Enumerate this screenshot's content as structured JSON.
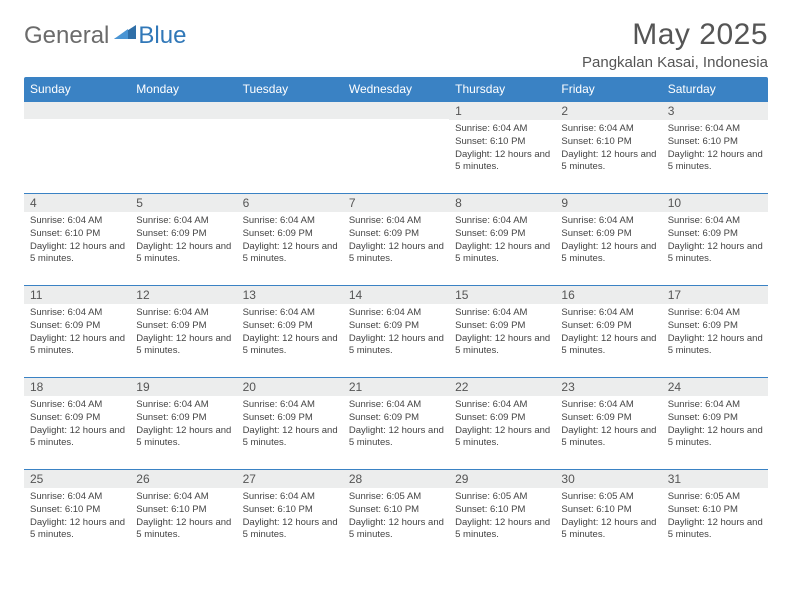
{
  "logo": {
    "text_general": "General",
    "text_blue": "Blue"
  },
  "title": "May 2025",
  "location": "Pangkalan Kasai, Indonesia",
  "colors": {
    "header_bg": "#3a82c4",
    "header_text": "#ffffff",
    "daynum_bg": "#eceded",
    "week_border": "#3a82c4",
    "logo_general": "#6b6b6b",
    "logo_blue": "#3178b8"
  },
  "weekdays": [
    "Sunday",
    "Monday",
    "Tuesday",
    "Wednesday",
    "Thursday",
    "Friday",
    "Saturday"
  ],
  "weeks": [
    [
      null,
      null,
      null,
      null,
      {
        "n": "1",
        "sunrise": "6:04 AM",
        "sunset": "6:10 PM",
        "daylight": "12 hours and 5 minutes."
      },
      {
        "n": "2",
        "sunrise": "6:04 AM",
        "sunset": "6:10 PM",
        "daylight": "12 hours and 5 minutes."
      },
      {
        "n": "3",
        "sunrise": "6:04 AM",
        "sunset": "6:10 PM",
        "daylight": "12 hours and 5 minutes."
      }
    ],
    [
      {
        "n": "4",
        "sunrise": "6:04 AM",
        "sunset": "6:10 PM",
        "daylight": "12 hours and 5 minutes."
      },
      {
        "n": "5",
        "sunrise": "6:04 AM",
        "sunset": "6:09 PM",
        "daylight": "12 hours and 5 minutes."
      },
      {
        "n": "6",
        "sunrise": "6:04 AM",
        "sunset": "6:09 PM",
        "daylight": "12 hours and 5 minutes."
      },
      {
        "n": "7",
        "sunrise": "6:04 AM",
        "sunset": "6:09 PM",
        "daylight": "12 hours and 5 minutes."
      },
      {
        "n": "8",
        "sunrise": "6:04 AM",
        "sunset": "6:09 PM",
        "daylight": "12 hours and 5 minutes."
      },
      {
        "n": "9",
        "sunrise": "6:04 AM",
        "sunset": "6:09 PM",
        "daylight": "12 hours and 5 minutes."
      },
      {
        "n": "10",
        "sunrise": "6:04 AM",
        "sunset": "6:09 PM",
        "daylight": "12 hours and 5 minutes."
      }
    ],
    [
      {
        "n": "11",
        "sunrise": "6:04 AM",
        "sunset": "6:09 PM",
        "daylight": "12 hours and 5 minutes."
      },
      {
        "n": "12",
        "sunrise": "6:04 AM",
        "sunset": "6:09 PM",
        "daylight": "12 hours and 5 minutes."
      },
      {
        "n": "13",
        "sunrise": "6:04 AM",
        "sunset": "6:09 PM",
        "daylight": "12 hours and 5 minutes."
      },
      {
        "n": "14",
        "sunrise": "6:04 AM",
        "sunset": "6:09 PM",
        "daylight": "12 hours and 5 minutes."
      },
      {
        "n": "15",
        "sunrise": "6:04 AM",
        "sunset": "6:09 PM",
        "daylight": "12 hours and 5 minutes."
      },
      {
        "n": "16",
        "sunrise": "6:04 AM",
        "sunset": "6:09 PM",
        "daylight": "12 hours and 5 minutes."
      },
      {
        "n": "17",
        "sunrise": "6:04 AM",
        "sunset": "6:09 PM",
        "daylight": "12 hours and 5 minutes."
      }
    ],
    [
      {
        "n": "18",
        "sunrise": "6:04 AM",
        "sunset": "6:09 PM",
        "daylight": "12 hours and 5 minutes."
      },
      {
        "n": "19",
        "sunrise": "6:04 AM",
        "sunset": "6:09 PM",
        "daylight": "12 hours and 5 minutes."
      },
      {
        "n": "20",
        "sunrise": "6:04 AM",
        "sunset": "6:09 PM",
        "daylight": "12 hours and 5 minutes."
      },
      {
        "n": "21",
        "sunrise": "6:04 AM",
        "sunset": "6:09 PM",
        "daylight": "12 hours and 5 minutes."
      },
      {
        "n": "22",
        "sunrise": "6:04 AM",
        "sunset": "6:09 PM",
        "daylight": "12 hours and 5 minutes."
      },
      {
        "n": "23",
        "sunrise": "6:04 AM",
        "sunset": "6:09 PM",
        "daylight": "12 hours and 5 minutes."
      },
      {
        "n": "24",
        "sunrise": "6:04 AM",
        "sunset": "6:09 PM",
        "daylight": "12 hours and 5 minutes."
      }
    ],
    [
      {
        "n": "25",
        "sunrise": "6:04 AM",
        "sunset": "6:10 PM",
        "daylight": "12 hours and 5 minutes."
      },
      {
        "n": "26",
        "sunrise": "6:04 AM",
        "sunset": "6:10 PM",
        "daylight": "12 hours and 5 minutes."
      },
      {
        "n": "27",
        "sunrise": "6:04 AM",
        "sunset": "6:10 PM",
        "daylight": "12 hours and 5 minutes."
      },
      {
        "n": "28",
        "sunrise": "6:05 AM",
        "sunset": "6:10 PM",
        "daylight": "12 hours and 5 minutes."
      },
      {
        "n": "29",
        "sunrise": "6:05 AM",
        "sunset": "6:10 PM",
        "daylight": "12 hours and 5 minutes."
      },
      {
        "n": "30",
        "sunrise": "6:05 AM",
        "sunset": "6:10 PM",
        "daylight": "12 hours and 5 minutes."
      },
      {
        "n": "31",
        "sunrise": "6:05 AM",
        "sunset": "6:10 PM",
        "daylight": "12 hours and 5 minutes."
      }
    ]
  ],
  "labels": {
    "sunrise_prefix": "Sunrise: ",
    "sunset_prefix": "Sunset: ",
    "daylight_prefix": "Daylight: "
  }
}
